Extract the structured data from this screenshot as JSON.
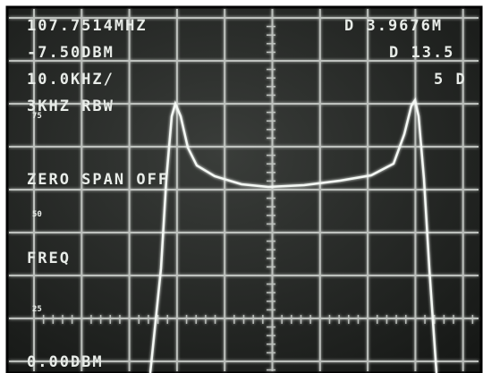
{
  "screen": {
    "readouts_left": [
      "107.7514MHZ",
      "-7.50DBM",
      "10.0KHZ/",
      "3KHZ RBW"
    ],
    "readouts_right": [
      "D 3.9676M",
      "D 13.5",
      "5 D"
    ],
    "menu": [
      "ZERO SPAN OFF",
      "FREQ"
    ],
    "reference_level": "0.00DBM",
    "scale_marks": [
      "75",
      "50",
      "25"
    ]
  }
}
